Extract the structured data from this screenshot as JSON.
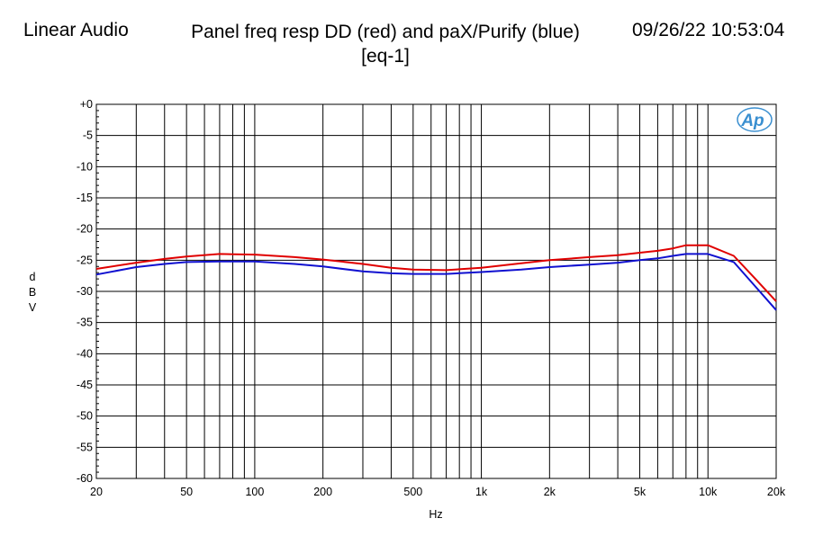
{
  "header": {
    "brand": "Linear Audio",
    "title_line1": "Panel freq resp DD (red) and paX/Purify (blue)",
    "title_line2": "[eq-1]",
    "timestamp": "09/26/22 10:53:04"
  },
  "logo_text": "Ap",
  "colors": {
    "red": "#e00000",
    "blue": "#1010d0",
    "grid": "#000000",
    "logo": "#3a8fd0"
  },
  "chart_data": {
    "type": "line",
    "xlabel": "Hz",
    "ylabel": "dBV",
    "x_scale": "log",
    "xlim": [
      20,
      20000
    ],
    "ylim": [
      -60,
      0
    ],
    "grid": true,
    "x_ticks": [
      {
        "v": 20,
        "label": "20"
      },
      {
        "v": 50,
        "label": "50"
      },
      {
        "v": 100,
        "label": "100"
      },
      {
        "v": 200,
        "label": "200"
      },
      {
        "v": 500,
        "label": "500"
      },
      {
        "v": 1000,
        "label": "1k"
      },
      {
        "v": 2000,
        "label": "2k"
      },
      {
        "v": 5000,
        "label": "5k"
      },
      {
        "v": 10000,
        "label": "10k"
      },
      {
        "v": 20000,
        "label": "20k"
      }
    ],
    "y_ticks": [
      {
        "v": 0,
        "label": "+0"
      },
      {
        "v": -5,
        "label": "-5"
      },
      {
        "v": -10,
        "label": "-10"
      },
      {
        "v": -15,
        "label": "-15"
      },
      {
        "v": -20,
        "label": "-20"
      },
      {
        "v": -25,
        "label": "-25"
      },
      {
        "v": -30,
        "label": "-30"
      },
      {
        "v": -35,
        "label": "-35"
      },
      {
        "v": -40,
        "label": "-40"
      },
      {
        "v": -45,
        "label": "-45"
      },
      {
        "v": -50,
        "label": "-50"
      },
      {
        "v": -55,
        "label": "-55"
      },
      {
        "v": -60,
        "label": "-60"
      }
    ],
    "series": [
      {
        "color": "red",
        "x": [
          20,
          30,
          40,
          50,
          70,
          100,
          150,
          200,
          300,
          400,
          500,
          700,
          1000,
          1500,
          2000,
          3000,
          4000,
          5000,
          6000,
          7000,
          8000,
          10000,
          13000,
          16000,
          20000
        ],
        "y": [
          -26.4,
          -25.4,
          -24.8,
          -24.4,
          -24.0,
          -24.1,
          -24.5,
          -24.9,
          -25.6,
          -26.2,
          -26.5,
          -26.6,
          -26.2,
          -25.5,
          -25.0,
          -24.5,
          -24.2,
          -23.8,
          -23.5,
          -23.1,
          -22.6,
          -22.6,
          -24.3,
          -27.8,
          -31.6
        ]
      },
      {
        "color": "blue",
        "x": [
          20,
          30,
          40,
          50,
          70,
          100,
          150,
          200,
          300,
          400,
          500,
          700,
          1000,
          1500,
          2000,
          3000,
          4000,
          5000,
          6000,
          7000,
          8000,
          10000,
          13000,
          16000,
          20000
        ],
        "y": [
          -27.3,
          -26.1,
          -25.6,
          -25.3,
          -25.2,
          -25.2,
          -25.6,
          -26.0,
          -26.8,
          -27.1,
          -27.2,
          -27.2,
          -26.9,
          -26.5,
          -26.1,
          -25.7,
          -25.4,
          -25.0,
          -24.7,
          -24.3,
          -24.0,
          -24.0,
          -25.3,
          -29.0,
          -33.0
        ]
      }
    ]
  }
}
